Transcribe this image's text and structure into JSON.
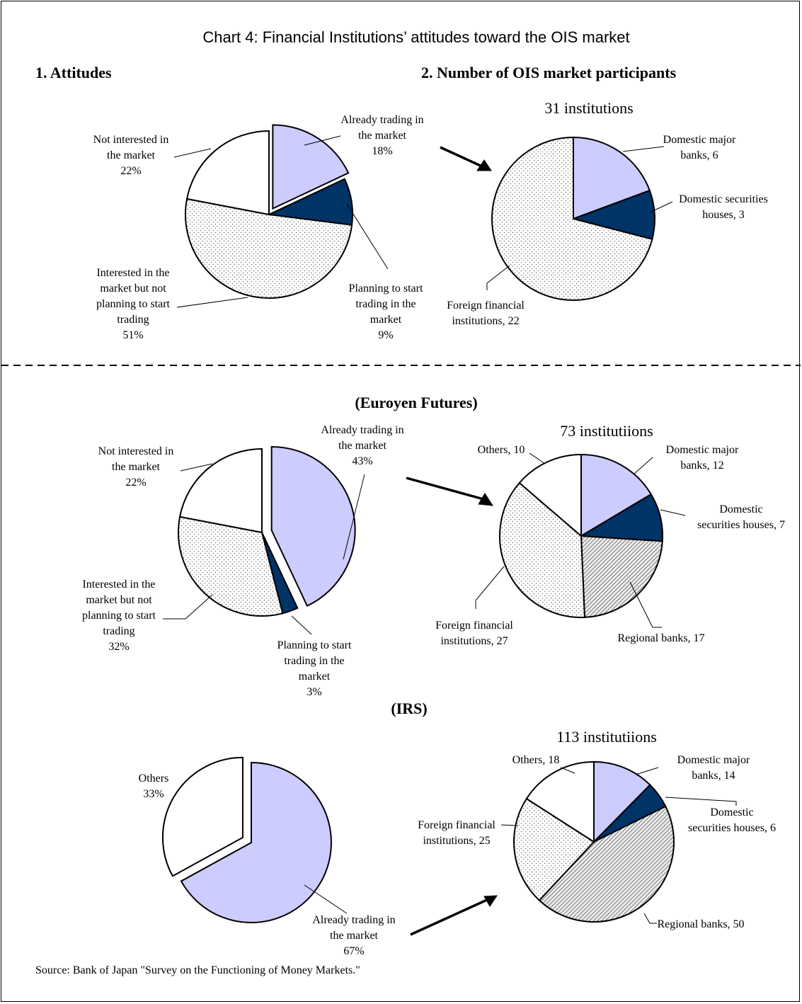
{
  "title": "Chart 4: Financial Institutions’ attitudes toward the OIS market",
  "section_left": "1. Attitudes",
  "section_right": "2. Number of OIS market participants",
  "subtitle_euroyen": "(Euroyen Futures)",
  "subtitle_irs": "(IRS)",
  "source": "Source: Bank of Japan \"Survey on the Functioning of Money Markets.\"",
  "colors": {
    "lavender": "#ccccff",
    "navy": "#003366",
    "dotted": "#ffffff",
    "hatched": "#bbbbbb",
    "white": "#ffffff"
  },
  "chart_data": [
    {
      "id": "ois-attitudes",
      "type": "pie",
      "title": "",
      "labels": [
        "Already trading in the market 18%",
        "Planning to start trading in the market 9%",
        "Interested in the market but not planning to start trading 51%",
        "Not interested in the market 22%"
      ],
      "values": [
        18,
        9,
        51,
        22
      ],
      "fills": [
        "lavender",
        "navy",
        "dotted",
        "white"
      ],
      "exploded": [
        true,
        false,
        false,
        false
      ]
    },
    {
      "id": "ois-participants",
      "type": "pie",
      "title": "31 institutions",
      "labels": [
        "Domestic major banks, 6",
        "Domestic securities houses, 3",
        "Foreign financial institutions, 22"
      ],
      "values": [
        6,
        3,
        22
      ],
      "fills": [
        "lavender",
        "navy",
        "dotted"
      ],
      "exploded": [
        false,
        false,
        false
      ]
    },
    {
      "id": "euroyen-attitudes",
      "type": "pie",
      "title": "",
      "labels": [
        "Already trading in the market 43%",
        "Planning to start trading in the market 3%",
        "Interested in the market but not planning to start trading 32%",
        "Not interested in the market 22%"
      ],
      "values": [
        43,
        3,
        32,
        22
      ],
      "fills": [
        "lavender",
        "navy",
        "dotted",
        "white"
      ],
      "exploded": [
        true,
        false,
        false,
        false
      ]
    },
    {
      "id": "euroyen-participants",
      "type": "pie",
      "title": "73 institutiions",
      "labels": [
        "Domestic major banks, 12",
        "Domestic securities houses, 7",
        "Regional banks, 17",
        "Foreign financial institutions, 27",
        "Others, 10"
      ],
      "values": [
        12,
        7,
        17,
        27,
        10
      ],
      "fills": [
        "lavender",
        "navy",
        "hatched",
        "dotted",
        "white"
      ],
      "exploded": [
        false,
        false,
        false,
        false,
        false
      ]
    },
    {
      "id": "irs-attitudes",
      "type": "pie",
      "title": "",
      "labels": [
        "Already trading in the market 67%",
        "Others 33%"
      ],
      "values": [
        67,
        33
      ],
      "fills": [
        "lavender",
        "white"
      ],
      "exploded": [
        false,
        true
      ]
    },
    {
      "id": "irs-participants",
      "type": "pie",
      "title": "113 institutiions",
      "labels": [
        "Domestic major banks, 14",
        "Domestic securities houses, 6",
        "Regional banks, 50",
        "Foreign financial institutions, 25",
        "Others, 18"
      ],
      "values": [
        14,
        6,
        50,
        25,
        18
      ],
      "fills": [
        "lavender",
        "navy",
        "hatched",
        "dotted",
        "white"
      ],
      "exploded": [
        false,
        false,
        false,
        false,
        false
      ]
    }
  ],
  "labels": {
    "ois_att": {
      "already": [
        "Already trading in",
        "the market",
        "18%"
      ],
      "planning": [
        "Planning to start",
        "trading in the",
        "market",
        "9%"
      ],
      "interested": [
        "Interested in the",
        "market but not",
        "planning to start",
        "trading",
        "51%"
      ],
      "not_interested": [
        "Not interested in",
        "the market",
        "22%"
      ]
    },
    "ois_part": {
      "major": [
        "Domestic  major",
        "banks, 6"
      ],
      "securities": [
        "Domestic securities",
        "houses, 3"
      ],
      "foreign": [
        "Foreign financial",
        "institutions, 22"
      ]
    },
    "euro_att": {
      "already": [
        "Already trading in",
        "the market",
        "43%"
      ],
      "planning": [
        "Planning to start",
        "trading in the",
        "market",
        "3%"
      ],
      "interested": [
        "Interested in the",
        "market but not",
        "planning to start",
        "trading",
        "32%"
      ],
      "not_interested": [
        "Not interested in",
        "the market",
        "22%"
      ]
    },
    "euro_part": {
      "major": [
        "Domestic major",
        "banks, 12"
      ],
      "securities": [
        "Domestic",
        "securities houses, 7"
      ],
      "regional": [
        "Regional banks, 17"
      ],
      "foreign": [
        "Foreign financial",
        "institutions, 27"
      ],
      "others": [
        "Others, 10"
      ]
    },
    "irs_att": {
      "already": [
        "Already trading in",
        "the market",
        "67%"
      ],
      "others": [
        "Others",
        "33%"
      ]
    },
    "irs_part": {
      "major": [
        "Domestic  major",
        "banks, 14"
      ],
      "securities": [
        "Domestic",
        "securities houses, 6"
      ],
      "regional": [
        "Regional banks, 50"
      ],
      "foreign": [
        "Foreign financial",
        "institutions, 25"
      ],
      "others": [
        "Others, 18"
      ]
    }
  }
}
